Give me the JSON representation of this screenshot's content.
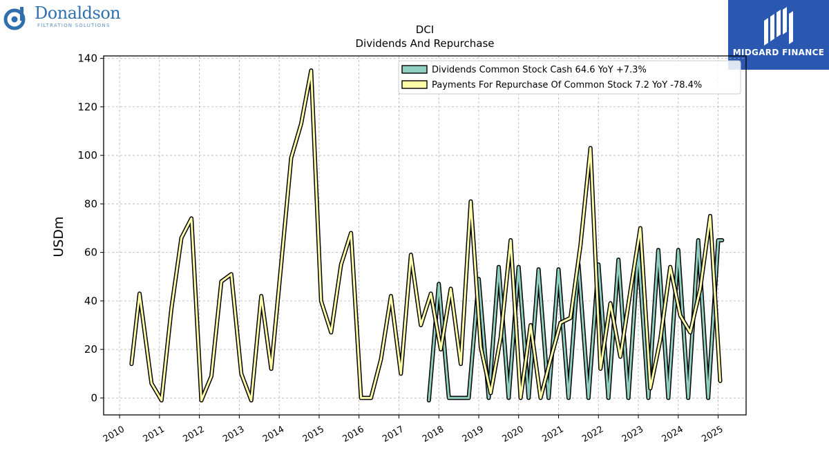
{
  "brand": {
    "name": "Donaldson",
    "tagline": "FILTRATION SOLUTIONS"
  },
  "publisher": {
    "name": "MIDGARD FINANCE"
  },
  "colors": {
    "dividends": "#8ecfc0",
    "repurchase": "#ffffaa",
    "edge": "#000000",
    "publisher_bg": "#2a58b0",
    "brand_blue": "#2f6fad"
  },
  "chart_data": {
    "type": "line",
    "title": "DCI",
    "subtitle": "Dividends And Repurchase",
    "ylabel": "USDm",
    "xlabel": "",
    "ylim": [
      -7,
      141
    ],
    "xlim": [
      2009.6,
      2025.7
    ],
    "yticks": [
      0,
      20,
      40,
      60,
      80,
      100,
      120,
      140
    ],
    "xticks": [
      2010,
      2011,
      2012,
      2013,
      2014,
      2015,
      2016,
      2017,
      2018,
      2019,
      2020,
      2021,
      2022,
      2023,
      2024,
      2025
    ],
    "grid": true,
    "legend_position": "top-right",
    "series": [
      {
        "name": "Dividends Common Stock Cash",
        "legend_label": "Dividends Common Stock Cash  64.6 YoY +7.3%",
        "x": [
          2017.75,
          2018.0,
          2018.25,
          2018.5,
          2018.75,
          2019.0,
          2019.25,
          2019.5,
          2019.75,
          2020.0,
          2020.25,
          2020.5,
          2020.75,
          2021.0,
          2021.25,
          2021.5,
          2021.75,
          2022.0,
          2022.25,
          2022.5,
          2022.75,
          2023.0,
          2023.25,
          2023.5,
          2023.75,
          2024.0,
          2024.25,
          2024.5,
          2024.75,
          2025.0,
          2025.1
        ],
        "y": [
          -1,
          47,
          0,
          0,
          0,
          49,
          0,
          54,
          0,
          54,
          0,
          53,
          0,
          53,
          0,
          55,
          0,
          55,
          0,
          57,
          0,
          61,
          0,
          61,
          0,
          61,
          0,
          65,
          0,
          65,
          65
        ]
      },
      {
        "name": "Payments For Repurchase Of Common Stock",
        "legend_label": "Payments For Repurchase Of Common Stock  7.2 YoY -78.4%",
        "x": [
          2010.3,
          2010.5,
          2010.8,
          2011.05,
          2011.3,
          2011.55,
          2011.8,
          2012.05,
          2012.3,
          2012.55,
          2012.8,
          2013.05,
          2013.3,
          2013.55,
          2013.8,
          2014.05,
          2014.3,
          2014.55,
          2014.8,
          2015.05,
          2015.3,
          2015.55,
          2015.8,
          2016.05,
          2016.3,
          2016.55,
          2016.8,
          2017.05,
          2017.3,
          2017.55,
          2017.8,
          2018.05,
          2018.3,
          2018.55,
          2018.8,
          2019.05,
          2019.3,
          2019.55,
          2019.8,
          2020.05,
          2020.3,
          2020.55,
          2020.8,
          2021.05,
          2021.3,
          2021.55,
          2021.8,
          2022.05,
          2022.3,
          2022.55,
          2022.8,
          2023.05,
          2023.3,
          2023.55,
          2023.8,
          2024.05,
          2024.3,
          2024.55,
          2024.8,
          2025.05
        ],
        "y": [
          14,
          43,
          6,
          -1,
          37,
          66,
          74,
          -1,
          9,
          48,
          51,
          10,
          -1,
          42,
          12,
          55,
          99,
          113,
          135,
          40,
          27,
          55,
          68,
          0,
          0,
          16,
          42,
          10,
          59,
          30,
          43,
          20,
          45,
          14,
          81,
          21,
          2,
          25,
          65,
          0,
          30,
          0,
          16,
          31,
          33,
          63,
          103,
          12,
          39,
          17,
          44,
          70,
          4,
          24,
          54,
          34,
          27,
          45,
          75,
          7
        ]
      }
    ]
  }
}
